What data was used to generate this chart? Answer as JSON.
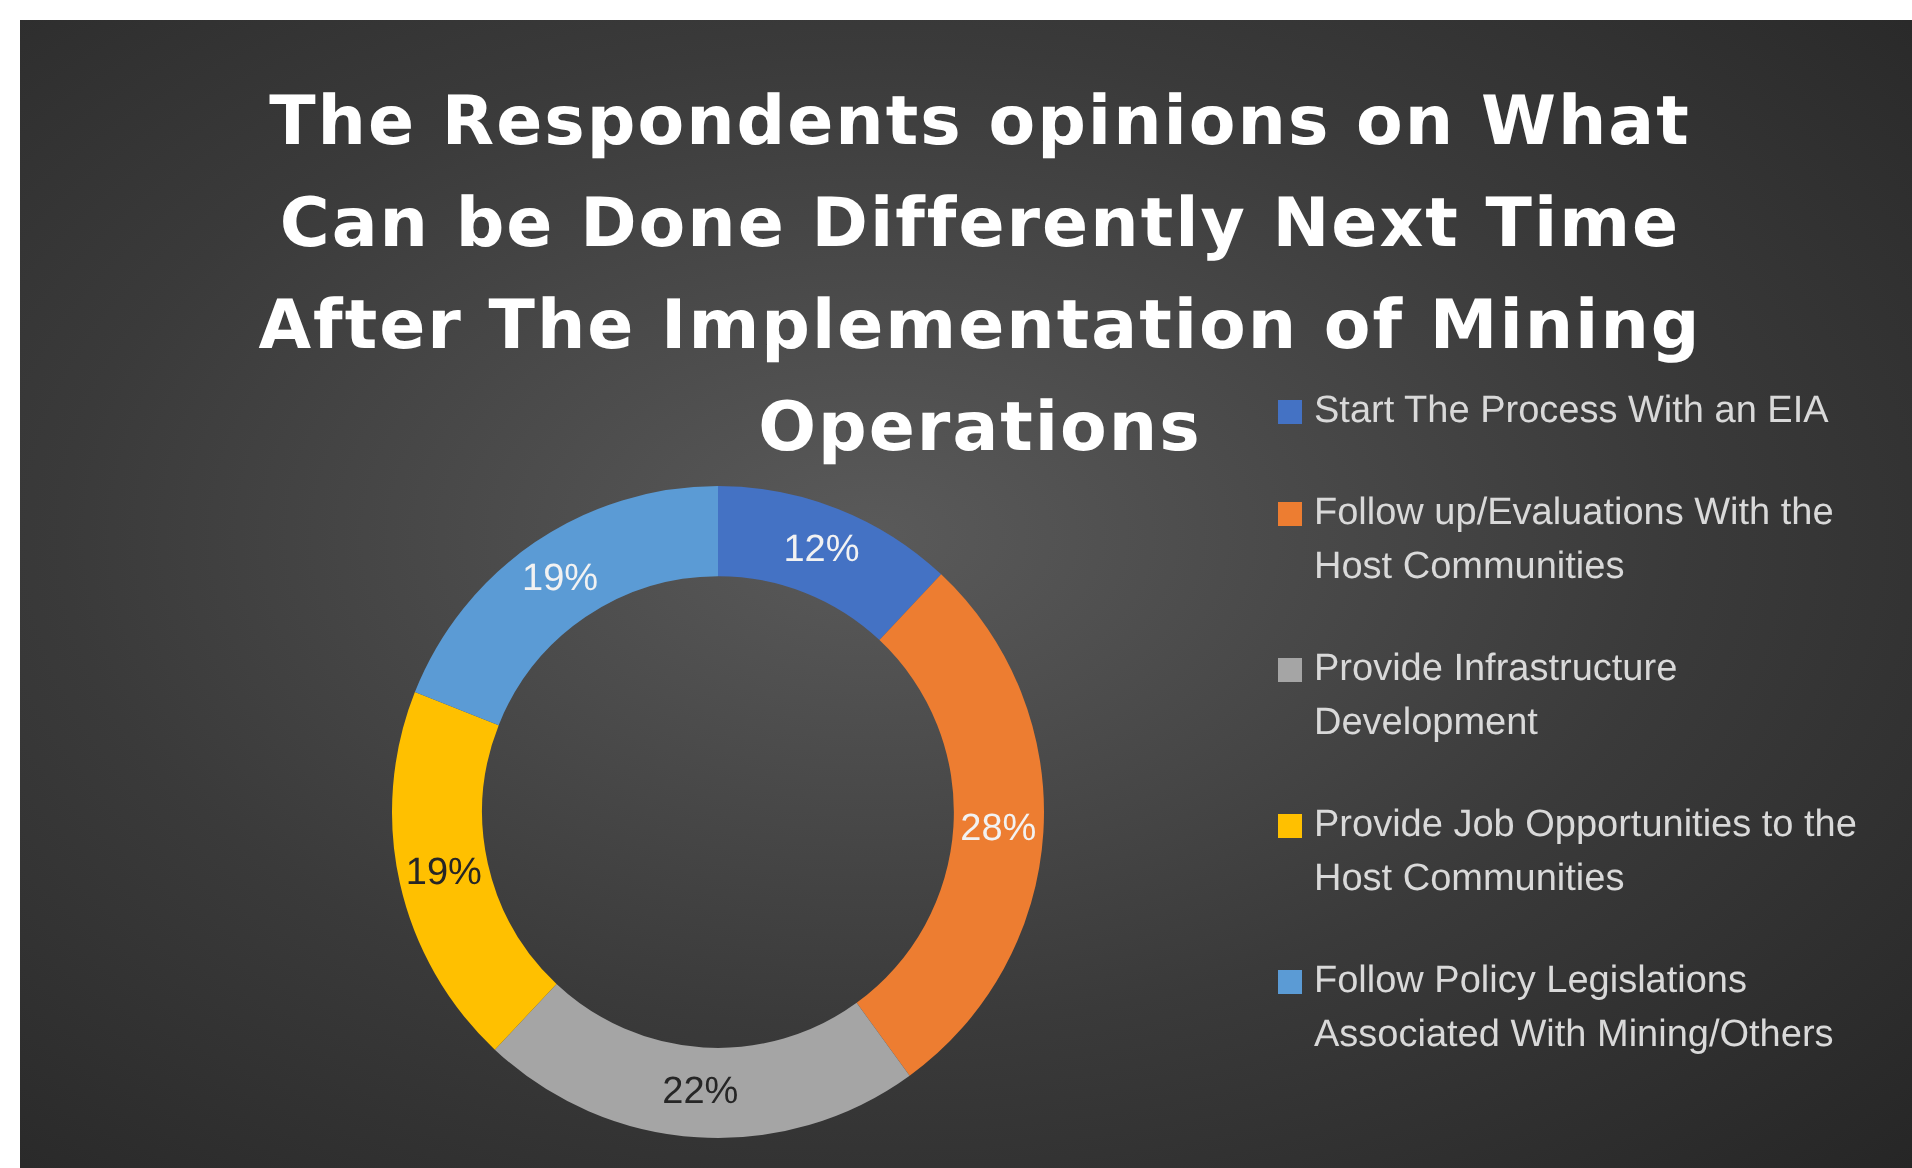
{
  "chart_data": {
    "type": "donut",
    "title": "The Respondents opinions on What Can be Done Differently Next Time After The Implementation of Mining Operations",
    "categories": [
      "Start The Process With an EIA",
      "Follow up/Evaluations With the Host Communities",
      "Provide Infrastructure Development",
      "Provide Job Opportunities to the Host Communities",
      "Follow Policy Legislations Associated With Mining/Others"
    ],
    "values": [
      12,
      28,
      22,
      19,
      19
    ],
    "value_labels": [
      "12%",
      "28%",
      "22%",
      "19%",
      "19%"
    ],
    "colors": [
      "#4472c4",
      "#ed7d31",
      "#a5a5a5",
      "#ffc000",
      "#5b9bd5"
    ],
    "legend": "right"
  }
}
